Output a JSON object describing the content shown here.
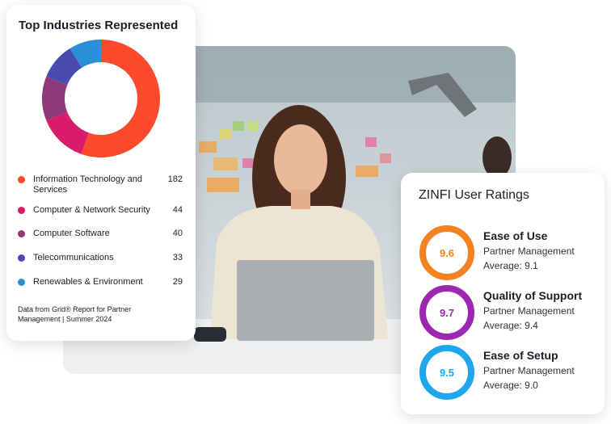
{
  "chart_data": {
    "type": "donut",
    "title": "Top Industries Represented",
    "categories": [
      "Information Technology and Services",
      "Computer & Network Security",
      "Computer Software",
      "Telecommunications",
      "Renewables & Environment"
    ],
    "values": [
      182,
      44,
      40,
      33,
      29
    ],
    "colors": [
      "#fe4a2c",
      "#d81b6a",
      "#8e3a7a",
      "#4a4bb0",
      "#2a8fd6"
    ],
    "source": "Data from Grid® Report for Partner Management | Summer 2024"
  },
  "ratings": {
    "title": "ZINFI User Ratings",
    "items": [
      {
        "score": "9.6",
        "color": "#f58220",
        "name": "Ease of Use",
        "segment": "Partner Management",
        "average": "Average: 9.1"
      },
      {
        "score": "9.7",
        "color": "#9c27b0",
        "name": "Quality of Support",
        "segment": "Partner Management",
        "average": "Average: 9.4"
      },
      {
        "score": "9.5",
        "color": "#1ea7ee",
        "name": "Ease of Setup",
        "segment": "Partner Management",
        "average": "Average: 9.0"
      }
    ]
  }
}
